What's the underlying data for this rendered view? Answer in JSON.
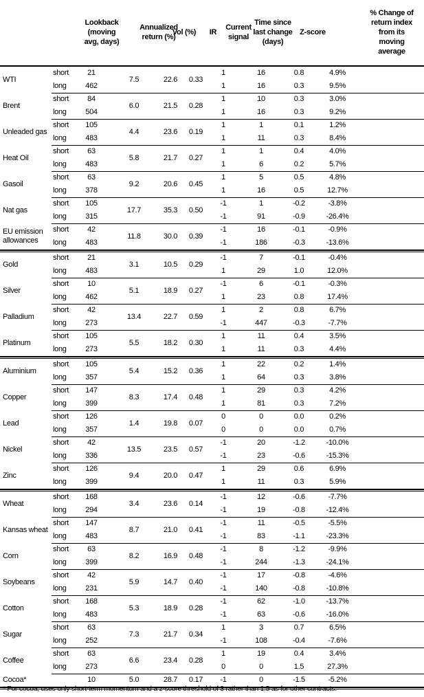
{
  "header": {
    "lookback": "Lookback\n(moving\navg, days)",
    "annualized": "Annualized\nreturn (%)",
    "vol": "Vol (%)",
    "ir": "IR",
    "signal": "Current\nsignal",
    "time": "Time since\nlast change\n(days)",
    "z": "Z-score",
    "change": "% Change of\nreturn index\nfrom its\nmoving\naverage"
  },
  "groups": [
    {
      "commodities": [
        {
          "name": "WTI",
          "ann": "7.5",
          "vol": "22.6",
          "ir": "0.33",
          "rows": [
            {
              "term": "short",
              "lookback": "21",
              "signal": "1",
              "time": "16",
              "z": "0.8",
              "change": "4.9%"
            },
            {
              "term": "long",
              "lookback": "462",
              "signal": "1",
              "time": "16",
              "z": "0.3",
              "change": "9.5%"
            }
          ]
        },
        {
          "name": "Brent",
          "ann": "6.0",
          "vol": "21.5",
          "ir": "0.28",
          "rows": [
            {
              "term": "short",
              "lookback": "84",
              "signal": "1",
              "time": "10",
              "z": "0.3",
              "change": "3.0%"
            },
            {
              "term": "long",
              "lookback": "504",
              "signal": "1",
              "time": "16",
              "z": "0.3",
              "change": "9.2%"
            }
          ]
        },
        {
          "name": "Unleaded gas",
          "ann": "4.4",
          "vol": "23.6",
          "ir": "0.19",
          "rows": [
            {
              "term": "short",
              "lookback": "105",
              "signal": "1",
              "time": "1",
              "z": "0.1",
              "change": "1.2%"
            },
            {
              "term": "long",
              "lookback": "483",
              "signal": "1",
              "time": "11",
              "z": "0.3",
              "change": "8.4%"
            }
          ]
        },
        {
          "name": "Heat Oil",
          "ann": "5.8",
          "vol": "21.7",
          "ir": "0.27",
          "rows": [
            {
              "term": "short",
              "lookback": "63",
              "signal": "1",
              "time": "1",
              "z": "0.4",
              "change": "4.0%"
            },
            {
              "term": "long",
              "lookback": "483",
              "signal": "1",
              "time": "6",
              "z": "0.2",
              "change": "5.7%"
            }
          ]
        },
        {
          "name": "Gasoil",
          "ann": "9.2",
          "vol": "20.6",
          "ir": "0.45",
          "rows": [
            {
              "term": "short",
              "lookback": "63",
              "signal": "1",
              "time": "5",
              "z": "0.5",
              "change": "4.8%"
            },
            {
              "term": "long",
              "lookback": "378",
              "signal": "1",
              "time": "16",
              "z": "0.5",
              "change": "12.7%"
            }
          ]
        },
        {
          "name": "Nat gas",
          "ann": "17.7",
          "vol": "35.3",
          "ir": "0.50",
          "rows": [
            {
              "term": "short",
              "lookback": "105",
              "signal": "-1",
              "time": "1",
              "z": "-0.2",
              "change": "-3.8%"
            },
            {
              "term": "long",
              "lookback": "315",
              "signal": "-1",
              "time": "91",
              "z": "-0.9",
              "change": "-26.4%"
            }
          ]
        },
        {
          "name": "EU emission allowances",
          "ann": "11.8",
          "vol": "30.0",
          "ir": "0.39",
          "rows": [
            {
              "term": "short",
              "lookback": "42",
              "signal": "-1",
              "time": "16",
              "z": "-0.1",
              "change": "-0.9%"
            },
            {
              "term": "long",
              "lookback": "483",
              "signal": "-1",
              "time": "186",
              "z": "-0.3",
              "change": "-13.6%"
            }
          ]
        }
      ]
    },
    {
      "commodities": [
        {
          "name": "Gold",
          "ann": "3.1",
          "vol": "10.5",
          "ir": "0.29",
          "rows": [
            {
              "term": "short",
              "lookback": "21",
              "signal": "-1",
              "time": "7",
              "z": "-0.1",
              "change": "-0.4%"
            },
            {
              "term": "long",
              "lookback": "483",
              "signal": "1",
              "time": "29",
              "z": "1.0",
              "change": "12.0%"
            }
          ]
        },
        {
          "name": "Silver",
          "ann": "5.1",
          "vol": "18.9",
          "ir": "0.27",
          "rows": [
            {
              "term": "short",
              "lookback": "10",
              "signal": "-1",
              "time": "6",
              "z": "-0.1",
              "change": "-0.3%"
            },
            {
              "term": "long",
              "lookback": "462",
              "signal": "1",
              "time": "23",
              "z": "0.8",
              "change": "17.4%"
            }
          ]
        },
        {
          "name": "Palladium",
          "ann": "13.4",
          "vol": "22.7",
          "ir": "0.59",
          "rows": [
            {
              "term": "short",
              "lookback": "42",
              "signal": "1",
              "time": "2",
              "z": "0.8",
              "change": "6.7%"
            },
            {
              "term": "long",
              "lookback": "273",
              "signal": "-1",
              "time": "447",
              "z": "-0.3",
              "change": "-7.7%"
            }
          ]
        },
        {
          "name": "Platinum",
          "ann": "5.5",
          "vol": "18.2",
          "ir": "0.30",
          "rows": [
            {
              "term": "short",
              "lookback": "105",
              "signal": "1",
              "time": "11",
              "z": "0.4",
              "change": "3.5%"
            },
            {
              "term": "long",
              "lookback": "273",
              "signal": "1",
              "time": "11",
              "z": "0.3",
              "change": "4.4%"
            }
          ]
        }
      ]
    },
    {
      "commodities": [
        {
          "name": "Aluminium",
          "ann": "5.4",
          "vol": "15.2",
          "ir": "0.36",
          "rows": [
            {
              "term": "short",
              "lookback": "105",
              "signal": "1",
              "time": "22",
              "z": "0.2",
              "change": "1.4%"
            },
            {
              "term": "long",
              "lookback": "357",
              "signal": "1",
              "time": "64",
              "z": "0.3",
              "change": "3.8%"
            }
          ]
        },
        {
          "name": "Copper",
          "ann": "8.3",
          "vol": "17.4",
          "ir": "0.48",
          "rows": [
            {
              "term": "short",
              "lookback": "147",
              "signal": "1",
              "time": "29",
              "z": "0.3",
              "change": "4.2%"
            },
            {
              "term": "long",
              "lookback": "399",
              "signal": "1",
              "time": "81",
              "z": "0.3",
              "change": "7.2%"
            }
          ]
        },
        {
          "name": "Lead",
          "ann": "1.4",
          "vol": "19.8",
          "ir": "0.07",
          "rows": [
            {
              "term": "short",
              "lookback": "126",
              "signal": "0",
              "time": "0",
              "z": "0.0",
              "change": "0.2%"
            },
            {
              "term": "long",
              "lookback": "357",
              "signal": "0",
              "time": "0",
              "z": "0.0",
              "change": "0.7%"
            }
          ]
        },
        {
          "name": "Nickel",
          "ann": "13.5",
          "vol": "23.5",
          "ir": "0.57",
          "rows": [
            {
              "term": "short",
              "lookback": "42",
              "signal": "-1",
              "time": "20",
              "z": "-1.2",
              "change": "-10.0%"
            },
            {
              "term": "long",
              "lookback": "336",
              "signal": "-1",
              "time": "23",
              "z": "-0.6",
              "change": "-15.3%"
            }
          ]
        },
        {
          "name": "Zinc",
          "ann": "9.4",
          "vol": "20.0",
          "ir": "0.47",
          "rows": [
            {
              "term": "short",
              "lookback": "126",
              "signal": "1",
              "time": "29",
              "z": "0.6",
              "change": "6.9%"
            },
            {
              "term": "long",
              "lookback": "399",
              "signal": "1",
              "time": "11",
              "z": "0.3",
              "change": "5.9%"
            }
          ]
        }
      ]
    },
    {
      "commodities": [
        {
          "name": "Wheat",
          "ann": "3.4",
          "vol": "23.6",
          "ir": "0.14",
          "rows": [
            {
              "term": "short",
              "lookback": "168",
              "signal": "-1",
              "time": "12",
              "z": "-0.6",
              "change": "-7.7%"
            },
            {
              "term": "long",
              "lookback": "294",
              "signal": "-1",
              "time": "19",
              "z": "-0.8",
              "change": "-12.4%"
            }
          ]
        },
        {
          "name": "Kansas wheat",
          "ann": "8.7",
          "vol": "21.0",
          "ir": "0.41",
          "rows": [
            {
              "term": "short",
              "lookback": "147",
              "signal": "-1",
              "time": "11",
              "z": "-0.5",
              "change": "-5.5%"
            },
            {
              "term": "long",
              "lookback": "483",
              "signal": "-1",
              "time": "83",
              "z": "-1.1",
              "change": "-23.3%"
            }
          ]
        },
        {
          "name": "Corn",
          "ann": "8.2",
          "vol": "16.9",
          "ir": "0.48",
          "rows": [
            {
              "term": "short",
              "lookback": "63",
              "signal": "-1",
              "time": "8",
              "z": "-1.2",
              "change": "-9.9%"
            },
            {
              "term": "long",
              "lookback": "399",
              "signal": "-1",
              "time": "244",
              "z": "-1.3",
              "change": "-24.1%"
            }
          ]
        },
        {
          "name": "Soybeans",
          "ann": "5.9",
          "vol": "14.7",
          "ir": "0.40",
          "rows": [
            {
              "term": "short",
              "lookback": "42",
              "signal": "-1",
              "time": "17",
              "z": "-0.8",
              "change": "-4.6%"
            },
            {
              "term": "long",
              "lookback": "231",
              "signal": "-1",
              "time": "140",
              "z": "-0.8",
              "change": "-10.8%"
            }
          ]
        },
        {
          "name": "Cotton",
          "ann": "5.3",
          "vol": "18.9",
          "ir": "0.28",
          "rows": [
            {
              "term": "short",
              "lookback": "168",
              "signal": "-1",
              "time": "62",
              "z": "-1.0",
              "change": "-13.7%"
            },
            {
              "term": "long",
              "lookback": "483",
              "signal": "-1",
              "time": "63",
              "z": "-0.6",
              "change": "-16.0%"
            }
          ]
        },
        {
          "name": "Sugar",
          "ann": "7.3",
          "vol": "21.7",
          "ir": "0.34",
          "rows": [
            {
              "term": "short",
              "lookback": "63",
              "signal": "1",
              "time": "3",
              "z": "0.7",
              "change": "6.5%"
            },
            {
              "term": "long",
              "lookback": "252",
              "signal": "-1",
              "time": "108",
              "z": "-0.4",
              "change": "-7.6%"
            }
          ]
        },
        {
          "name": "Coffee",
          "ann": "6.6",
          "vol": "23.4",
          "ir": "0.28",
          "rows": [
            {
              "term": "short",
              "lookback": "63",
              "signal": "1",
              "time": "19",
              "z": "0.4",
              "change": "3.4%"
            },
            {
              "term": "long",
              "lookback": "273",
              "signal": "0",
              "time": "0",
              "z": "1.5",
              "change": "27.3%"
            }
          ]
        },
        {
          "name": "Cocoa*",
          "ann": "5.0",
          "vol": "28.7",
          "ir": "0.17",
          "rows": [
            {
              "term": "",
              "lookback": "10",
              "signal": "-1",
              "time": "0",
              "z": "-1.5",
              "change": "-5.2%"
            }
          ]
        }
      ]
    }
  ],
  "footnote": "* For cocoa, uses only short-term momentum and a z-score threshold of 3 rather than 1.5 as for other contracts."
}
